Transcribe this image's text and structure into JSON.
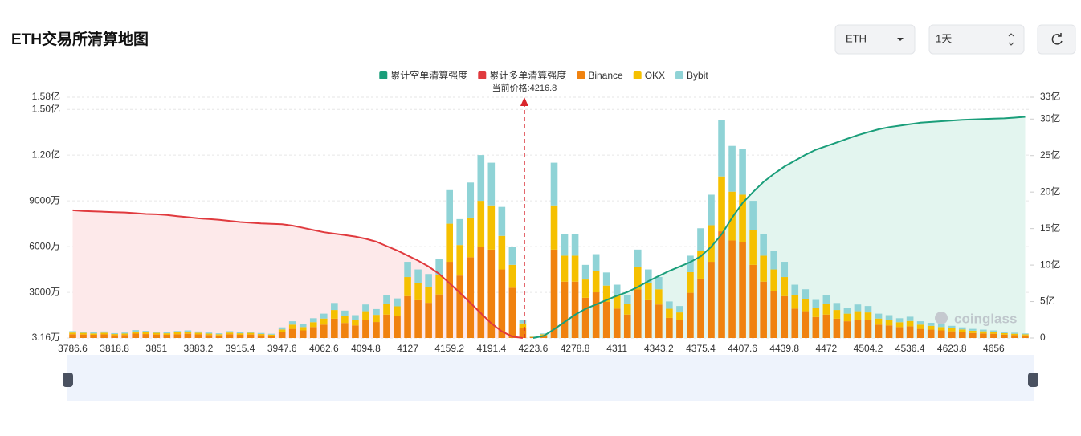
{
  "header": {
    "title": "ETH交易所清算地图",
    "symbol": "ETH",
    "interval": "1天"
  },
  "chart_data": {
    "type": "bar",
    "annotation": "当前价格:4216.8",
    "current_price": 4216.8,
    "watermark": "coinglass",
    "categories": [
      "3786.6",
      null,
      null,
      null,
      "3818.8",
      null,
      null,
      null,
      "3851",
      null,
      null,
      null,
      "3883.2",
      null,
      null,
      null,
      "3915.4",
      null,
      null,
      null,
      "3947.6",
      null,
      null,
      null,
      "4062.6",
      null,
      null,
      null,
      "4094.8",
      null,
      null,
      null,
      "4127",
      null,
      null,
      null,
      "4159.2",
      null,
      null,
      null,
      "4191.4",
      null,
      null,
      null,
      "4223.6",
      null,
      null,
      null,
      "4278.8",
      null,
      null,
      null,
      "4311",
      null,
      null,
      null,
      "4343.2",
      null,
      null,
      null,
      "4375.4",
      null,
      null,
      null,
      "4407.6",
      null,
      null,
      null,
      "4439.8",
      null,
      null,
      null,
      "4472",
      null,
      null,
      null,
      "4504.2",
      null,
      null,
      null,
      "4536.4",
      null,
      null,
      null,
      "4623.8",
      null,
      null,
      null,
      "4656",
      null,
      null,
      null
    ],
    "ylim": [
      3.16,
      15800
    ],
    "yticks": [
      {
        "value": 3.16,
        "label": "3.16万"
      },
      {
        "value": 3000,
        "label": "3000万"
      },
      {
        "value": 6000,
        "label": "6000万"
      },
      {
        "value": 9000,
        "label": "9000万"
      },
      {
        "value": 12000,
        "label": "1.20亿"
      },
      {
        "value": 15000,
        "label": "1.50亿"
      },
      {
        "value": 15800,
        "label": "1.58亿"
      }
    ],
    "y2lim": [
      0,
      330000
    ],
    "y2ticks": [
      0,
      {
        "value": 50000,
        "label": "5亿"
      },
      {
        "value": 100000,
        "label": "10亿"
      },
      {
        "value": 150000,
        "label": "15亿"
      },
      {
        "value": 200000,
        "label": "20亿"
      },
      {
        "value": 250000,
        "label": "25亿"
      },
      {
        "value": 300000,
        "label": "30亿"
      },
      {
        "value": 330000,
        "label": "33亿"
      }
    ],
    "grid": true,
    "series": [
      {
        "name": "累计空单清算强度",
        "type": "line",
        "axis": "y2",
        "color": "#1a9e7a",
        "fill": "#e3f5ef",
        "values": [
          null,
          null,
          null,
          null,
          null,
          null,
          null,
          null,
          null,
          null,
          null,
          null,
          null,
          null,
          null,
          null,
          null,
          null,
          null,
          null,
          null,
          null,
          null,
          null,
          null,
          null,
          null,
          null,
          null,
          null,
          null,
          null,
          null,
          null,
          null,
          null,
          null,
          null,
          null,
          null,
          null,
          null,
          null,
          null,
          0,
          3000,
          12000,
          22000,
          32000,
          40000,
          46000,
          52000,
          58000,
          63000,
          70000,
          78000,
          85000,
          92000,
          98000,
          104000,
          112000,
          125000,
          142000,
          165000,
          185000,
          200000,
          214000,
          225000,
          235000,
          243000,
          251000,
          258000,
          263000,
          268000,
          273000,
          278000,
          282000,
          286000,
          289000,
          291000,
          293000,
          295000,
          296000,
          297000,
          298000,
          299000,
          299500,
          300000,
          300500,
          301000,
          302000,
          303000
        ]
      },
      {
        "name": "累计多单清算强度",
        "type": "line",
        "axis": "y2",
        "color": "#e03a3e",
        "fill": "#fde9ea",
        "values": [
          175000,
          174000,
          173500,
          173000,
          172500,
          172000,
          171000,
          170000,
          169500,
          168500,
          167000,
          165500,
          164000,
          163000,
          162000,
          160500,
          159000,
          158000,
          157000,
          156500,
          156000,
          154000,
          151000,
          148000,
          145000,
          143000,
          141000,
          139000,
          136000,
          132000,
          126000,
          120000,
          113000,
          106000,
          98000,
          88000,
          75000,
          62000,
          48000,
          34000,
          20000,
          9000,
          2000,
          0,
          null,
          null,
          null,
          null,
          null,
          null,
          null,
          null,
          null,
          null,
          null,
          null,
          null,
          null,
          null,
          null,
          null,
          null,
          null,
          null,
          null,
          null,
          null,
          null,
          null,
          null,
          null,
          null,
          null,
          null,
          null,
          null,
          null,
          null,
          null,
          null,
          null,
          null,
          null,
          null,
          null,
          null,
          null,
          null,
          null,
          null,
          null,
          null
        ]
      },
      {
        "name": "Binance",
        "type": "bar",
        "color": "#f0820f",
        "values": [
          250,
          230,
          210,
          240,
          180,
          200,
          290,
          260,
          230,
          210,
          250,
          280,
          240,
          200,
          170,
          250,
          210,
          230,
          180,
          150,
          390,
          600,
          500,
          720,
          880,
          1270,
          990,
          830,
          1210,
          1050,
          1540,
          1430,
          2750,
          2480,
          2310,
          2860,
          5000,
          4100,
          5300,
          6000,
          5800,
          4500,
          3300,
          660,
          60,
          170,
          5800,
          3700,
          3700,
          2640,
          3000,
          2370,
          1930,
          1540,
          3190,
          2480,
          2200,
          1320,
          1160,
          2970,
          3900,
          5000,
          7000,
          6400,
          6300,
          4800,
          3700,
          3100,
          2750,
          1930,
          1760,
          1380,
          1540,
          1270,
          1100,
          1210,
          1160,
          880,
          830,
          720,
          770,
          600,
          550,
          500,
          440,
          390,
          330,
          300,
          280,
          220,
          190,
          170
        ]
      },
      {
        "name": "OKX",
        "type": "bar",
        "color": "#f5c000",
        "values": [
          110,
          110,
          90,
          110,
          80,
          90,
          130,
          120,
          110,
          100,
          120,
          120,
          110,
          90,
          80,
          110,
          100,
          110,
          80,
          70,
          170,
          280,
          220,
          320,
          400,
          570,
          450,
          370,
          550,
          470,
          700,
          650,
          1250,
          1120,
          1050,
          1300,
          2500,
          2000,
          2600,
          3000,
          2900,
          2200,
          1500,
          300,
          20,
          70,
          2900,
          1700,
          1700,
          1200,
          1400,
          1070,
          870,
          700,
          1450,
          1120,
          1000,
          600,
          520,
          1350,
          1800,
          2400,
          3600,
          3200,
          3100,
          2300,
          1700,
          1400,
          1250,
          870,
          800,
          620,
          700,
          570,
          500,
          550,
          520,
          400,
          370,
          320,
          350,
          280,
          250,
          220,
          200,
          170,
          150,
          140,
          120,
          100,
          90,
          70
        ]
      },
      {
        "name": "Bybit",
        "type": "bar",
        "color": "#8fd3d6",
        "values": [
          90,
          80,
          80,
          80,
          60,
          70,
          100,
          90,
          80,
          80,
          90,
          100,
          80,
          70,
          60,
          90,
          80,
          80,
          70,
          60,
          140,
          220,
          180,
          260,
          320,
          460,
          360,
          300,
          440,
          380,
          560,
          520,
          1000,
          900,
          840,
          1040,
          2200,
          1700,
          2300,
          3000,
          2800,
          1900,
          1200,
          240,
          20,
          60,
          2800,
          1400,
          1400,
          960,
          1100,
          860,
          700,
          560,
          1160,
          900,
          800,
          480,
          420,
          1080,
          1500,
          2000,
          3700,
          3000,
          3000,
          1900,
          1400,
          1200,
          1000,
          700,
          640,
          500,
          560,
          460,
          400,
          440,
          420,
          320,
          300,
          260,
          280,
          220,
          200,
          180,
          160,
          140,
          120,
          110,
          100,
          80,
          70,
          60
        ]
      }
    ]
  }
}
